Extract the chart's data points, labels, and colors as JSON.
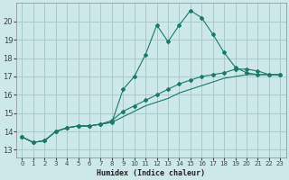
{
  "xlabel": "Humidex (Indice chaleur)",
  "bg_color": "#cce8e8",
  "grid_color": "#aacaca",
  "line_color": "#1a7a6a",
  "xlim": [
    -0.5,
    23.5
  ],
  "ylim": [
    12.6,
    21.0
  ],
  "xticks": [
    0,
    1,
    2,
    3,
    4,
    5,
    6,
    7,
    8,
    9,
    10,
    11,
    12,
    13,
    14,
    15,
    16,
    17,
    18,
    19,
    20,
    21,
    22,
    23
  ],
  "yticks": [
    13,
    14,
    15,
    16,
    17,
    18,
    19,
    20
  ],
  "s1_x": [
    0,
    1,
    2,
    3,
    4,
    5,
    6,
    7,
    8,
    9,
    10,
    11,
    12,
    13,
    14,
    15,
    16,
    17,
    18,
    19,
    20,
    21,
    22,
    23
  ],
  "s1_y": [
    13.7,
    13.4,
    13.5,
    14.0,
    14.2,
    14.3,
    14.3,
    14.4,
    14.5,
    16.3,
    17.0,
    18.2,
    19.8,
    18.9,
    19.8,
    20.6,
    20.2,
    19.3,
    18.3,
    17.5,
    17.2,
    17.1,
    17.1,
    17.1
  ],
  "s2_x": [
    0,
    1,
    2,
    3,
    4,
    5,
    6,
    7,
    8,
    9,
    10,
    11,
    12,
    13,
    14,
    15,
    16,
    17,
    18,
    19,
    20,
    21,
    22,
    23
  ],
  "s2_y": [
    13.7,
    13.4,
    13.5,
    14.0,
    14.2,
    14.3,
    14.3,
    14.4,
    14.6,
    15.1,
    15.4,
    15.7,
    16.0,
    16.3,
    16.6,
    16.8,
    17.0,
    17.1,
    17.2,
    17.4,
    17.4,
    17.3,
    17.1,
    17.1
  ],
  "s3_x": [
    0,
    1,
    2,
    3,
    4,
    5,
    6,
    7,
    8,
    9,
    10,
    11,
    12,
    13,
    14,
    15,
    16,
    17,
    18,
    19,
    20,
    21,
    22,
    23
  ],
  "s3_y": [
    13.7,
    13.4,
    13.5,
    14.0,
    14.2,
    14.3,
    14.3,
    14.4,
    14.5,
    14.8,
    15.1,
    15.4,
    15.6,
    15.8,
    16.1,
    16.3,
    16.5,
    16.7,
    16.9,
    17.0,
    17.1,
    17.1,
    17.1,
    17.1
  ]
}
